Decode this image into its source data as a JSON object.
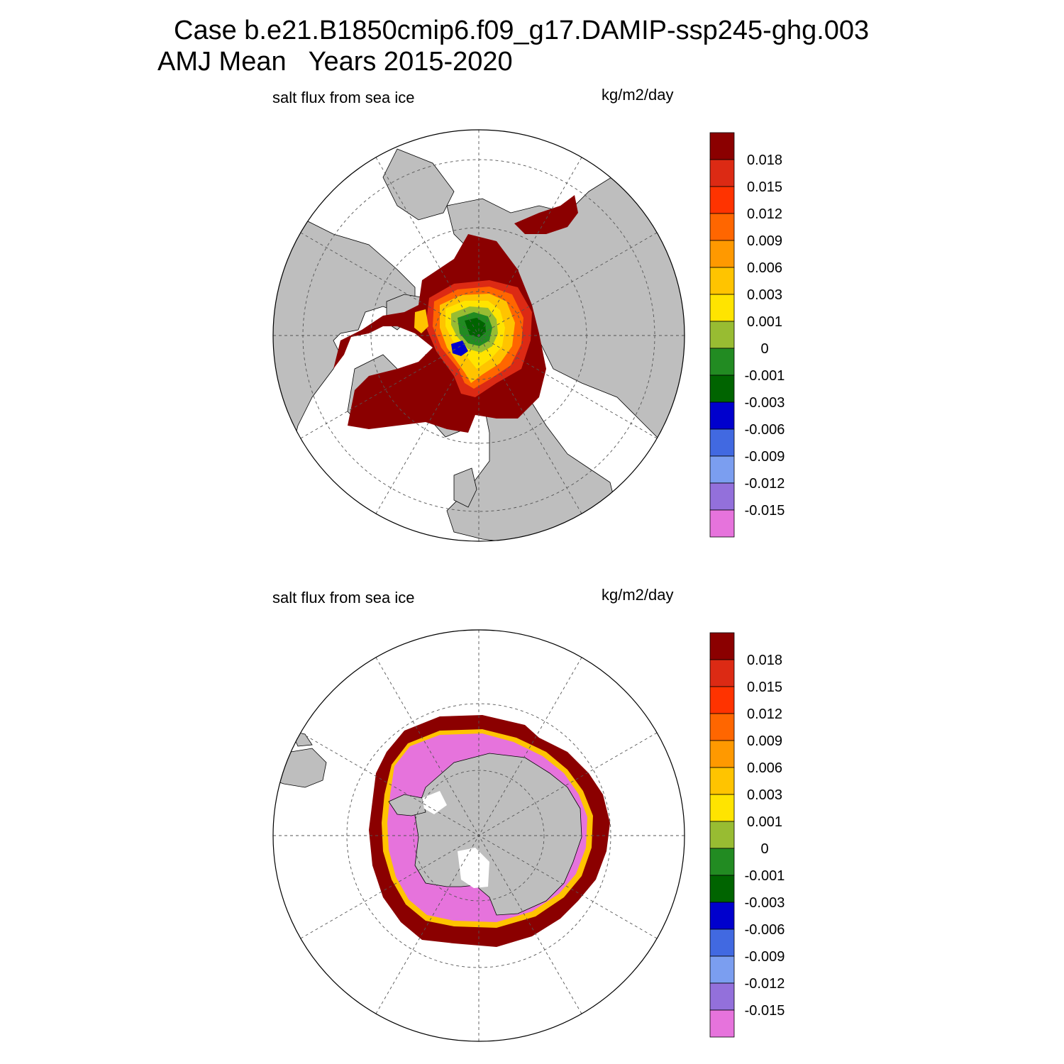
{
  "title": {
    "line1": "Case b.e21.B1850cmip6.f09_g17.DAMIP-ssp245-ghg.003",
    "line2": "AMJ Mean   Years 2015-2020"
  },
  "panels": [
    {
      "id": "north",
      "variable": "salt flux from sea ice",
      "units": "kg/m2/day",
      "hemisphere": "north"
    },
    {
      "id": "south",
      "variable": "salt flux from sea ice",
      "units": "kg/m2/day",
      "hemisphere": "south"
    }
  ],
  "colorbar": {
    "labels": [
      "0.018",
      "0.015",
      "0.012",
      "0.009",
      "0.006",
      "0.003",
      "0.001",
      "0",
      "-0.001",
      "-0.003",
      "-0.006",
      "-0.009",
      "-0.012",
      "-0.015"
    ],
    "colors": [
      "#8b0000",
      "#dc2a14",
      "#ff3300",
      "#ff6600",
      "#ff9900",
      "#ffc400",
      "#ffe400",
      "#98bc32",
      "#228b22",
      "#006400",
      "#0000cd",
      "#4169e1",
      "#7b9ef0",
      "#9370db",
      "#e673dc"
    ]
  },
  "style": {
    "land": "#bebebe",
    "ocean": "#ffffff",
    "outline": "#000000",
    "grid": "#555555"
  }
}
